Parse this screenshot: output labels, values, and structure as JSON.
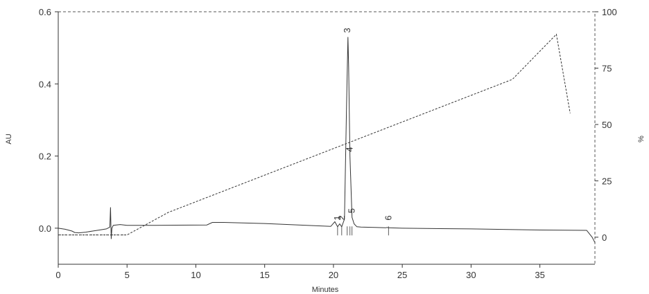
{
  "chart_data": {
    "type": "line",
    "title": "",
    "xlabel": "Minutes",
    "ylabel_left": "AU",
    "ylabel_right": "%",
    "xlim": [
      0,
      39
    ],
    "ylim_left": [
      -0.1,
      0.6
    ],
    "ylim_right": [
      -12,
      100
    ],
    "x_ticks": [
      0,
      5,
      10,
      15,
      20,
      25,
      30,
      35
    ],
    "y_ticks_left": [
      0.0,
      0.2,
      0.4,
      0.6
    ],
    "y_tick_labels_left": [
      "0.0",
      "0.2",
      "0.4",
      "0.6"
    ],
    "y_ticks_right": [
      0,
      25,
      50,
      75,
      100
    ],
    "grid": false,
    "series": [
      {
        "axis": "left",
        "style": "solid",
        "x": [
          0,
          0.5,
          1.0,
          1.2,
          1.5,
          2.0,
          2.5,
          3.0,
          3.5,
          3.75,
          3.8,
          3.85,
          3.9,
          4.0,
          4.5,
          5,
          7,
          10.8,
          11.2,
          12,
          15,
          19.8,
          20.1,
          20.3,
          20.45,
          20.6,
          20.8,
          20.95,
          21.05,
          21.1,
          21.2,
          21.35,
          21.5,
          21.7,
          22,
          23,
          23.8,
          23.9,
          24,
          25,
          30,
          35,
          38.4,
          38.8,
          39
        ],
        "y": [
          0.0,
          -0.003,
          -0.008,
          -0.012,
          -0.013,
          -0.011,
          -0.008,
          -0.005,
          -0.002,
          0.003,
          0.058,
          -0.03,
          0.0,
          0.008,
          0.01,
          0.008,
          0.008,
          0.009,
          0.016,
          0.016,
          0.013,
          0.005,
          0.018,
          0.004,
          0.012,
          0.004,
          0.025,
          0.34,
          0.53,
          0.45,
          0.2,
          0.03,
          0.012,
          0.004,
          0.003,
          0.002,
          0.001,
          0.002,
          0.001,
          0.0,
          -0.002,
          -0.005,
          -0.006,
          -0.025,
          -0.04
        ]
      },
      {
        "axis": "right",
        "style": "dashed",
        "x": [
          0,
          5,
          8,
          33,
          36.2,
          37.2
        ],
        "y": [
          1,
          1,
          11,
          70,
          90,
          55
        ]
      }
    ],
    "peaks": [
      {
        "label": "1",
        "x": 20.3
      },
      {
        "label": "2",
        "x": 20.6
      },
      {
        "label": "3",
        "x": 21.0
      },
      {
        "label": "4",
        "x": 21.2
      },
      {
        "label": "5",
        "x": 21.35
      },
      {
        "label": "6",
        "x": 24.0
      }
    ]
  }
}
